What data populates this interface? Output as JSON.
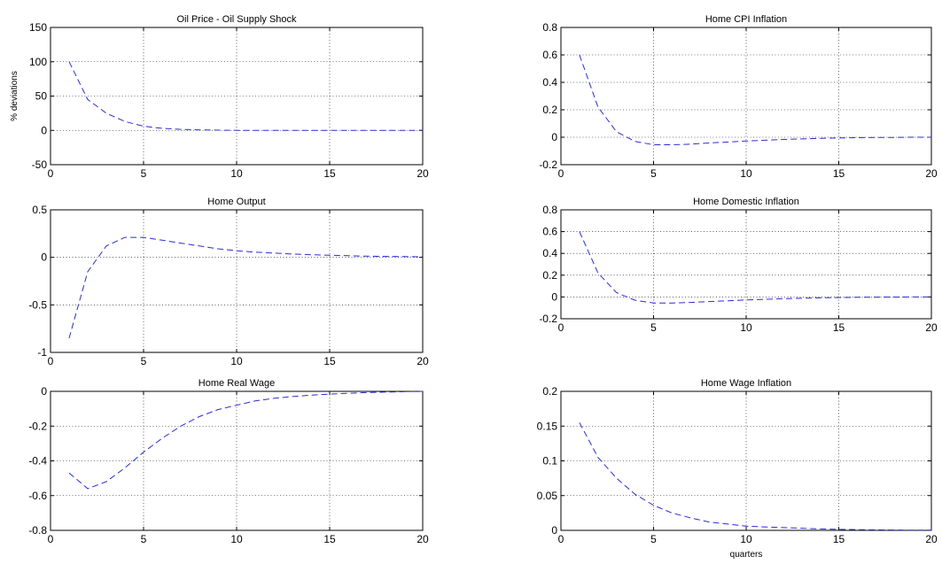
{
  "chart_data": [
    {
      "type": "line",
      "title": "Oil Price - Oil Supply Shock",
      "xlabel": "",
      "ylabel": "% deviations",
      "xlim": [
        0,
        20
      ],
      "ylim": [
        -50,
        150
      ],
      "xticks": [
        "0",
        "5",
        "10",
        "15",
        "20"
      ],
      "yticks": [
        "-50",
        "0",
        "50",
        "100",
        "150"
      ],
      "grid": true,
      "line_color": "#2b2bd6",
      "line_style": "dashed",
      "x": [
        1,
        2,
        3,
        4,
        5,
        6,
        7,
        8,
        9,
        10,
        11,
        12,
        13,
        14,
        15,
        16,
        17,
        18,
        19,
        20
      ],
      "y": [
        100,
        45,
        25,
        13,
        6,
        3,
        1.5,
        0.7,
        0.3,
        0.1,
        0,
        0,
        0,
        0,
        0,
        0,
        0,
        0,
        0,
        0
      ]
    },
    {
      "type": "line",
      "title": "Home CPI Inflation",
      "xlabel": "",
      "ylabel": "",
      "xlim": [
        0,
        20
      ],
      "ylim": [
        -0.2,
        0.8
      ],
      "xticks": [
        "0",
        "5",
        "10",
        "15",
        "20"
      ],
      "yticks": [
        "-0.2",
        "0",
        "0.2",
        "0.4",
        "0.6",
        "0.8"
      ],
      "grid": true,
      "line_color": "#2b2bd6",
      "line_style": "dashed",
      "x": [
        1,
        2,
        3,
        4,
        5,
        6,
        7,
        8,
        9,
        10,
        11,
        12,
        13,
        14,
        15,
        16,
        17,
        18,
        19,
        20
      ],
      "y": [
        0.6,
        0.22,
        0.04,
        -0.03,
        -0.055,
        -0.055,
        -0.05,
        -0.042,
        -0.035,
        -0.028,
        -0.022,
        -0.016,
        -0.012,
        -0.008,
        -0.005,
        -0.003,
        -0.002,
        -0.001,
        0,
        0
      ]
    },
    {
      "type": "line",
      "title": "Home Output",
      "xlabel": "",
      "ylabel": "",
      "xlim": [
        0,
        20
      ],
      "ylim": [
        -1,
        0.5
      ],
      "xticks": [
        "0",
        "5",
        "10",
        "15",
        "20"
      ],
      "yticks": [
        "-1",
        "-0.5",
        "0",
        "0.5"
      ],
      "grid": true,
      "line_color": "#2b2bd6",
      "line_style": "dashed",
      "x": [
        1,
        2,
        3,
        4,
        5,
        6,
        7,
        8,
        9,
        10,
        11,
        12,
        13,
        14,
        15,
        16,
        17,
        18,
        19,
        20
      ],
      "y": [
        -0.85,
        -0.15,
        0.12,
        0.21,
        0.21,
        0.18,
        0.15,
        0.12,
        0.09,
        0.07,
        0.055,
        0.045,
        0.035,
        0.028,
        0.022,
        0.017,
        0.013,
        0.01,
        0.008,
        0.006
      ]
    },
    {
      "type": "line",
      "title": "Home Domestic Inflation",
      "xlabel": "",
      "ylabel": "",
      "xlim": [
        0,
        20
      ],
      "ylim": [
        -0.2,
        0.8
      ],
      "xticks": [
        "0",
        "5",
        "10",
        "15",
        "20"
      ],
      "yticks": [
        "-0.2",
        "0",
        "0.2",
        "0.4",
        "0.6",
        "0.8"
      ],
      "grid": true,
      "line_color": "#2b2bd6",
      "line_style": "dashed",
      "x": [
        1,
        2,
        3,
        4,
        5,
        6,
        7,
        8,
        9,
        10,
        11,
        12,
        13,
        14,
        15,
        16,
        17,
        18,
        19,
        20
      ],
      "y": [
        0.6,
        0.22,
        0.04,
        -0.03,
        -0.055,
        -0.055,
        -0.05,
        -0.042,
        -0.035,
        -0.028,
        -0.022,
        -0.016,
        -0.012,
        -0.008,
        -0.005,
        -0.003,
        -0.002,
        -0.001,
        0,
        0
      ]
    },
    {
      "type": "line",
      "title": "Home Real Wage",
      "xlabel": "",
      "ylabel": "",
      "xlim": [
        0,
        20
      ],
      "ylim": [
        -0.8,
        0
      ],
      "xticks": [
        "0",
        "5",
        "10",
        "15",
        "20"
      ],
      "yticks": [
        "-0.8",
        "-0.6",
        "-0.4",
        "-0.2",
        "0"
      ],
      "grid": true,
      "line_color": "#2b2bd6",
      "line_style": "dashed",
      "x": [
        1,
        2,
        3,
        4,
        5,
        6,
        7,
        8,
        9,
        10,
        11,
        12,
        13,
        14,
        15,
        16,
        17,
        18,
        19,
        20
      ],
      "y": [
        -0.47,
        -0.56,
        -0.52,
        -0.44,
        -0.35,
        -0.27,
        -0.2,
        -0.145,
        -0.105,
        -0.08,
        -0.055,
        -0.04,
        -0.03,
        -0.022,
        -0.016,
        -0.011,
        -0.007,
        -0.004,
        -0.002,
        0
      ]
    },
    {
      "type": "line",
      "title": "Home Wage Inflation",
      "xlabel": "quarters",
      "ylabel": "",
      "xlim": [
        0,
        20
      ],
      "ylim": [
        0,
        0.2
      ],
      "xticks": [
        "0",
        "5",
        "10",
        "15",
        "20"
      ],
      "yticks": [
        "0",
        "0.05",
        "0.1",
        "0.15",
        "0.2"
      ],
      "grid": true,
      "line_color": "#2b2bd6",
      "line_style": "dashed",
      "x": [
        1,
        2,
        3,
        4,
        5,
        6,
        7,
        8,
        9,
        10,
        11,
        12,
        13,
        14,
        15,
        16,
        17,
        18,
        19,
        20
      ],
      "y": [
        0.155,
        0.105,
        0.075,
        0.052,
        0.036,
        0.025,
        0.018,
        0.012,
        0.009,
        0.006,
        0.005,
        0.004,
        0.003,
        0.002,
        0.0015,
        0.001,
        0.0008,
        0.0005,
        0.0003,
        0.0002
      ]
    }
  ]
}
